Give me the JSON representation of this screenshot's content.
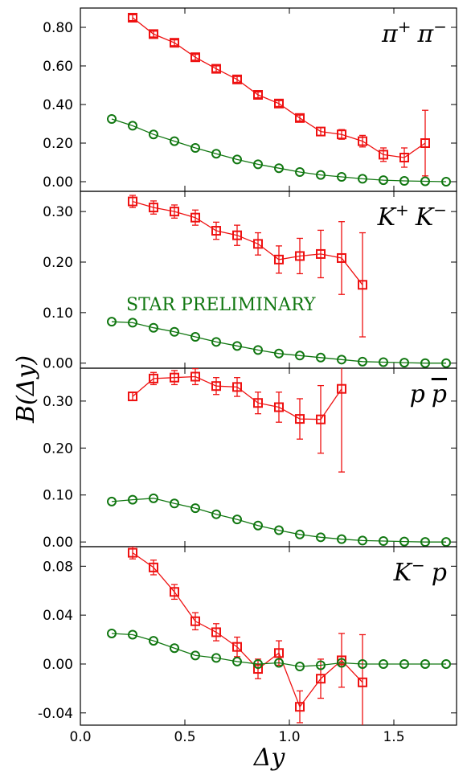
{
  "colors": {
    "red": "#ee1111",
    "green": "#117711",
    "axis": "#000000"
  },
  "chart_data": {
    "type": "line",
    "xlabel": "Δy",
    "ylabel": "B(Δy)",
    "xlim": [
      0.0,
      1.8
    ],
    "x_ticks": [
      "0.0",
      "0.5",
      "1.0",
      "1.5"
    ],
    "x_tick_values": [
      0.0,
      0.5,
      1.0,
      1.5
    ],
    "annotation": "STAR PRELIMINARY",
    "panels": [
      {
        "label_base": [
          "π",
          "π"
        ],
        "label_sups": [
          "+",
          "−"
        ],
        "label_style": "sup",
        "ylim": [
          -0.05,
          0.9
        ],
        "y_ticks": [
          "0.00",
          "0.20",
          "0.40",
          "0.60",
          "0.80"
        ],
        "y_tick_values": [
          0.0,
          0.2,
          0.4,
          0.6,
          0.8
        ],
        "series": [
          {
            "marker": "square",
            "color": "red",
            "x": [
              0.25,
              0.35,
              0.45,
              0.55,
              0.65,
              0.75,
              0.85,
              0.95,
              1.05,
              1.15,
              1.25,
              1.35,
              1.45,
              1.55,
              1.65
            ],
            "y": [
              0.85,
              0.765,
              0.72,
              0.645,
              0.585,
              0.53,
              0.45,
              0.405,
              0.33,
              0.26,
              0.245,
              0.21,
              0.14,
              0.125,
              0.2
            ],
            "err": [
              0.015,
              0.015,
              0.015,
              0.015,
              0.015,
              0.015,
              0.015,
              0.015,
              0.015,
              0.02,
              0.025,
              0.03,
              0.035,
              0.05,
              0.17
            ]
          },
          {
            "marker": "circle",
            "color": "green",
            "x": [
              0.15,
              0.25,
              0.35,
              0.45,
              0.55,
              0.65,
              0.75,
              0.85,
              0.95,
              1.05,
              1.15,
              1.25,
              1.35,
              1.45,
              1.55,
              1.65,
              1.75
            ],
            "y": [
              0.325,
              0.29,
              0.245,
              0.21,
              0.175,
              0.145,
              0.115,
              0.09,
              0.07,
              0.05,
              0.035,
              0.025,
              0.015,
              0.008,
              0.004,
              0.002,
              0.0
            ],
            "err": []
          }
        ]
      },
      {
        "label_base": [
          "K",
          "K"
        ],
        "label_sups": [
          "+",
          "−"
        ],
        "label_style": "sup",
        "ylim": [
          -0.01,
          0.34
        ],
        "y_ticks": [
          "0.00",
          "0.10",
          "0.20",
          "0.30"
        ],
        "y_tick_values": [
          0.0,
          0.1,
          0.2,
          0.3
        ],
        "series": [
          {
            "marker": "square",
            "color": "red",
            "x": [
              0.25,
              0.35,
              0.45,
              0.55,
              0.65,
              0.75,
              0.85,
              0.95,
              1.05,
              1.15,
              1.25,
              1.35
            ],
            "y": [
              0.32,
              0.308,
              0.3,
              0.288,
              0.262,
              0.253,
              0.236,
              0.205,
              0.212,
              0.216,
              0.208,
              0.155
            ],
            "err": [
              0.012,
              0.013,
              0.013,
              0.015,
              0.017,
              0.02,
              0.022,
              0.027,
              0.035,
              0.047,
              0.072,
              0.103
            ]
          },
          {
            "marker": "circle",
            "color": "green",
            "x": [
              0.15,
              0.25,
              0.35,
              0.45,
              0.55,
              0.65,
              0.75,
              0.85,
              0.95,
              1.05,
              1.15,
              1.25,
              1.35,
              1.45,
              1.55,
              1.65,
              1.75
            ],
            "y": [
              0.082,
              0.08,
              0.07,
              0.062,
              0.052,
              0.042,
              0.034,
              0.026,
              0.019,
              0.015,
              0.011,
              0.007,
              0.003,
              0.002,
              0.001,
              0.0,
              0.0
            ],
            "err": []
          }
        ]
      },
      {
        "label_base": [
          "p",
          "p"
        ],
        "label_sups": [
          "",
          ""
        ],
        "label_style": "bar",
        "ylim": [
          -0.01,
          0.37
        ],
        "y_ticks": [
          "0.00",
          "0.10",
          "0.20",
          "0.30"
        ],
        "y_tick_values": [
          0.0,
          0.1,
          0.2,
          0.3
        ],
        "series": [
          {
            "marker": "square",
            "color": "red",
            "x": [
              0.25,
              0.35,
              0.45,
              0.55,
              0.65,
              0.75,
              0.85,
              0.95,
              1.05,
              1.15,
              1.25
            ],
            "y": [
              0.31,
              0.348,
              0.35,
              0.352,
              0.332,
              0.33,
              0.296,
              0.287,
              0.262,
              0.261,
              0.326
            ],
            "err": [
              0.008,
              0.013,
              0.015,
              0.017,
              0.018,
              0.02,
              0.023,
              0.032,
              0.043,
              0.072,
              0.177
            ]
          },
          {
            "marker": "circle",
            "color": "green",
            "x": [
              0.15,
              0.25,
              0.35,
              0.45,
              0.55,
              0.65,
              0.75,
              0.85,
              0.95,
              1.05,
              1.15,
              1.25,
              1.35,
              1.45,
              1.55,
              1.65,
              1.75
            ],
            "y": [
              0.086,
              0.09,
              0.093,
              0.082,
              0.072,
              0.059,
              0.048,
              0.035,
              0.025,
              0.016,
              0.01,
              0.006,
              0.003,
              0.002,
              0.001,
              0.0,
              0.0
            ],
            "err": []
          }
        ]
      },
      {
        "label_base": [
          "K",
          "p"
        ],
        "label_sups": [
          "−",
          ""
        ],
        "label_style": "sup",
        "ylim": [
          -0.05,
          0.096
        ],
        "y_ticks": [
          "-0.04",
          "0.00",
          "0.04",
          "0.08"
        ],
        "y_tick_values": [
          -0.04,
          0.0,
          0.04,
          0.08
        ],
        "series": [
          {
            "marker": "square",
            "color": "red",
            "x": [
              0.25,
              0.35,
              0.45,
              0.55,
              0.65,
              0.75,
              0.85,
              0.95,
              1.05,
              1.15,
              1.25,
              1.35
            ],
            "y": [
              0.091,
              0.079,
              0.059,
              0.035,
              0.026,
              0.014,
              -0.004,
              0.009,
              -0.035,
              -0.012,
              0.003,
              -0.015
            ],
            "err": [
              0.005,
              0.006,
              0.006,
              0.007,
              0.007,
              0.008,
              0.008,
              0.01,
              0.013,
              0.016,
              0.022,
              0.039
            ]
          },
          {
            "marker": "circle",
            "color": "green",
            "x": [
              0.15,
              0.25,
              0.35,
              0.45,
              0.55,
              0.65,
              0.75,
              0.85,
              0.95,
              1.05,
              1.15,
              1.25,
              1.35,
              1.45,
              1.55,
              1.65,
              1.75
            ],
            "y": [
              0.025,
              0.024,
              0.019,
              0.013,
              0.007,
              0.005,
              0.002,
              0.0,
              0.001,
              -0.002,
              -0.001,
              0.001,
              0.0,
              0.0,
              0.0,
              0.0,
              0.0
            ],
            "err": []
          }
        ]
      }
    ]
  }
}
